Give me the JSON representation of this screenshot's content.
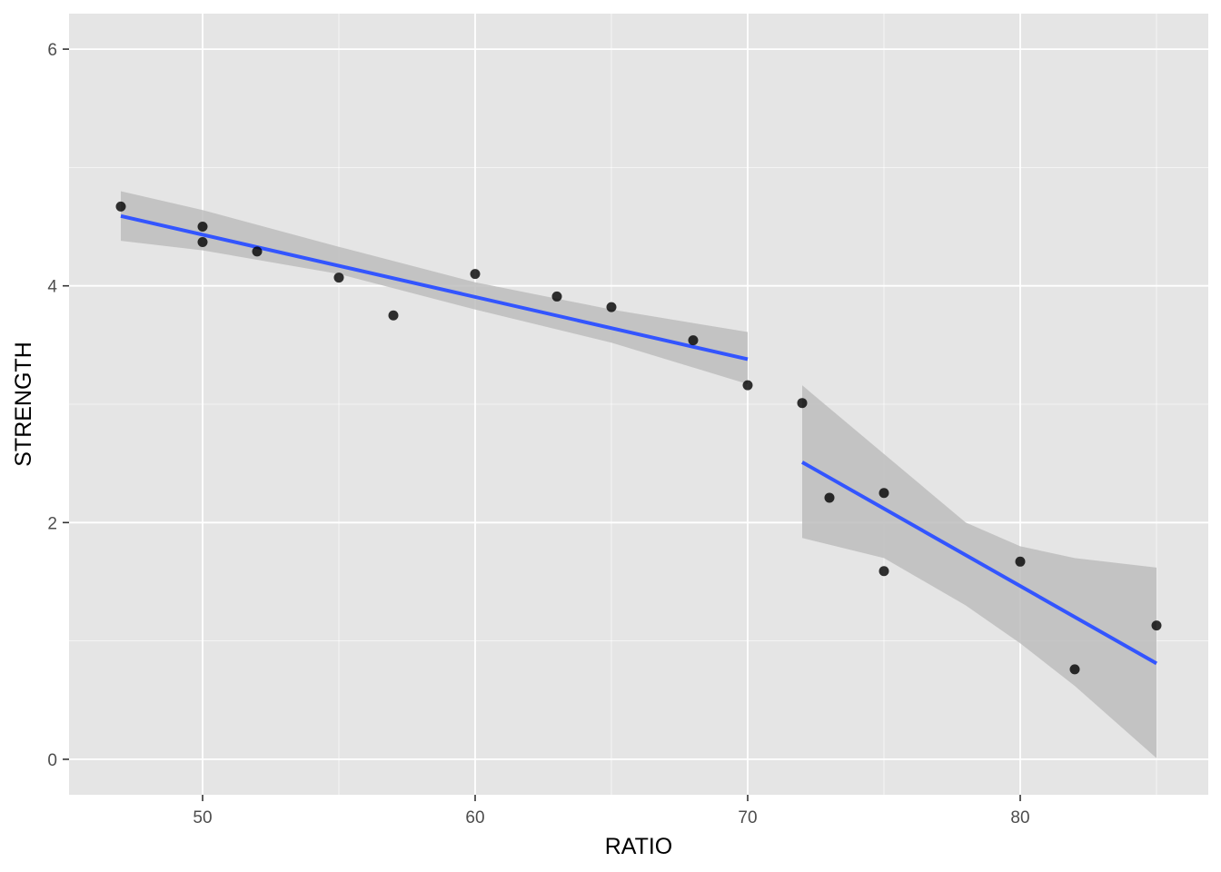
{
  "chart_data": {
    "type": "scatter",
    "title": "",
    "xlabel": "RATIO",
    "ylabel": "STRENGTH",
    "xlim": [
      45.1,
      86.9
    ],
    "ylim": [
      -0.3,
      6.3
    ],
    "x_ticks": [
      50,
      60,
      70,
      80
    ],
    "y_ticks": [
      0,
      2,
      4,
      6
    ],
    "x_tick_labels": [
      "50",
      "60",
      "70",
      "80"
    ],
    "y_tick_labels": [
      "0",
      "2",
      "4",
      "6"
    ],
    "grid": true,
    "legend": "none",
    "colors": {
      "panel": "#e5e5e5",
      "grid": "#ffffff",
      "points": "#000000",
      "fit_line": "#3355ff",
      "confidence_band": "#bdbdbd"
    },
    "points": [
      {
        "x": 47,
        "y": 4.67
      },
      {
        "x": 50,
        "y": 4.5
      },
      {
        "x": 50,
        "y": 4.37
      },
      {
        "x": 52,
        "y": 4.29
      },
      {
        "x": 55,
        "y": 4.07
      },
      {
        "x": 57,
        "y": 3.75
      },
      {
        "x": 60,
        "y": 4.1
      },
      {
        "x": 63,
        "y": 3.91
      },
      {
        "x": 65,
        "y": 3.82
      },
      {
        "x": 68,
        "y": 3.54
      },
      {
        "x": 70,
        "y": 3.16
      },
      {
        "x": 72,
        "y": 3.01
      },
      {
        "x": 73,
        "y": 2.21
      },
      {
        "x": 75,
        "y": 2.25
      },
      {
        "x": 75,
        "y": 1.59
      },
      {
        "x": 80,
        "y": 1.67
      },
      {
        "x": 82,
        "y": 0.76
      },
      {
        "x": 85,
        "y": 1.13
      }
    ],
    "fits": [
      {
        "x": [
          47,
          70
        ],
        "y": [
          4.59,
          3.38
        ],
        "band_x": [
          47,
          50,
          55,
          60,
          65,
          70
        ],
        "band_lower": [
          4.38,
          4.3,
          4.1,
          3.8,
          3.52,
          3.17
        ],
        "band_upper": [
          4.8,
          4.64,
          4.33,
          4.03,
          3.8,
          3.61
        ]
      },
      {
        "x": [
          72,
          85
        ],
        "y": [
          2.51,
          0.81
        ],
        "band_x": [
          72,
          75,
          78,
          80,
          82,
          85
        ],
        "band_lower": [
          1.87,
          1.7,
          1.3,
          0.98,
          0.62,
          0.01
        ],
        "band_upper": [
          3.16,
          2.58,
          2.0,
          1.8,
          1.7,
          1.62
        ]
      }
    ]
  }
}
